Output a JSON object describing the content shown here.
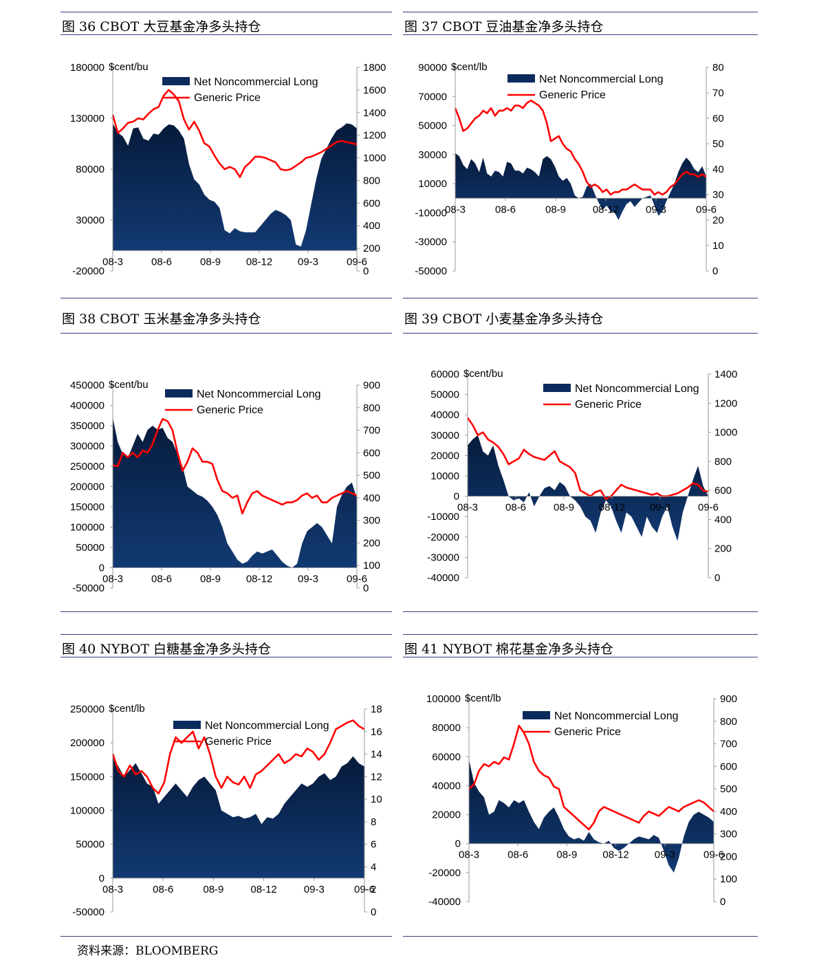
{
  "source_note": "资料来源：BLOOMBERG",
  "colors": {
    "area": "#0b2b5c",
    "area_top": "#061a3a",
    "price": "#ff0000",
    "rule": "#333b7a"
  },
  "chart_data": [
    {
      "id": "c36",
      "type": "area+line",
      "title": "图 36 CBOT 大豆基金净多头持仓",
      "unit_label": "$cent/bu",
      "legend": [
        "Net Noncommercial Long",
        "Generic Price"
      ],
      "x_ticks": [
        "08-3",
        "08-6",
        "08-9",
        "08-12",
        "09-3",
        "09-6"
      ],
      "left_axis": {
        "min": -20000,
        "max": 180000,
        "ticks": [
          -20000,
          30000,
          80000,
          130000,
          180000
        ]
      },
      "right_axis": {
        "min": 0,
        "max": 1800,
        "ticks": [
          0,
          200,
          400,
          600,
          800,
          1000,
          1200,
          1400,
          1600,
          1800
        ]
      },
      "net_long": [
        125000,
        116000,
        112000,
        103000,
        120000,
        121000,
        110000,
        108000,
        115000,
        114000,
        120000,
        124000,
        123000,
        118000,
        110000,
        85000,
        70000,
        65000,
        55000,
        50000,
        48000,
        42000,
        20000,
        17000,
        22000,
        19000,
        18000,
        18000,
        18000,
        24000,
        30000,
        36000,
        40000,
        38000,
        35000,
        30000,
        6000,
        4000,
        20000,
        45000,
        70000,
        90000,
        100000,
        110000,
        118000,
        121000,
        125000,
        124000,
        120000
      ],
      "price": [
        1380,
        1220,
        1260,
        1310,
        1320,
        1350,
        1340,
        1390,
        1430,
        1450,
        1550,
        1600,
        1560,
        1500,
        1340,
        1250,
        1320,
        1240,
        1130,
        1100,
        1020,
        950,
        900,
        920,
        900,
        830,
        920,
        960,
        1010,
        1010,
        1000,
        980,
        960,
        900,
        890,
        900,
        930,
        960,
        1000,
        1010,
        1030,
        1050,
        1080,
        1110,
        1140,
        1150,
        1140,
        1130,
        1120
      ]
    },
    {
      "id": "c37",
      "type": "area+line",
      "title": "图 37 CBOT 豆油基金净多头持仓",
      "unit_label": "$cent/lb",
      "legend": [
        "Net Noncommercial Long",
        "Generic Price"
      ],
      "x_ticks": [
        "08-3",
        "08-6",
        "08-9",
        "08-12",
        "09-3",
        "09-6"
      ],
      "left_axis": {
        "min": -50000,
        "max": 90000,
        "ticks": [
          -50000,
          -30000,
          -10000,
          10000,
          30000,
          50000,
          70000,
          90000
        ]
      },
      "right_axis": {
        "min": 0,
        "max": 80,
        "ticks": [
          0,
          10,
          20,
          30,
          40,
          50,
          60,
          70,
          80
        ]
      },
      "net_long": [
        31000,
        29000,
        23000,
        20000,
        27000,
        24000,
        18000,
        28000,
        17000,
        15000,
        19000,
        18000,
        15000,
        25000,
        24000,
        19000,
        19000,
        17000,
        21000,
        20000,
        18000,
        15000,
        27000,
        29000,
        27000,
        22000,
        15000,
        12000,
        14000,
        10000,
        2000,
        0,
        1000,
        8000,
        10000,
        3000,
        -3000,
        -8000,
        -5000,
        -9000,
        -10000,
        -15000,
        -9000,
        -4000,
        -2000,
        -6000,
        -3000,
        0,
        1000,
        2000,
        -5000,
        -12000,
        -9000,
        -2000,
        4000,
        10000,
        18000,
        24000,
        28000,
        25000,
        20000,
        18000,
        22000,
        15000
      ],
      "price": [
        64,
        60,
        55,
        56,
        58,
        60,
        61,
        63,
        62,
        64,
        61,
        63,
        63,
        64,
        63,
        65,
        65,
        64,
        66,
        67,
        66,
        65,
        63,
        58,
        51,
        52,
        53,
        50,
        48,
        47,
        44,
        42,
        39,
        35,
        33,
        34,
        33,
        31,
        32,
        30,
        31,
        31,
        32,
        32,
        33,
        34,
        33,
        32,
        32,
        32,
        30,
        31,
        30,
        31,
        33,
        34,
        36,
        38,
        39,
        38,
        38,
        37,
        38,
        37
      ]
    },
    {
      "id": "c38",
      "type": "area+line",
      "title": "图 38 CBOT 玉米基金净多头持仓",
      "unit_label": "$cent/bu",
      "legend": [
        "Net Noncommercial Long",
        "Generic Price"
      ],
      "x_ticks": [
        "08-3",
        "08-6",
        "08-9",
        "08-12",
        "09-3",
        "09-6"
      ],
      "left_axis": {
        "min": -50000,
        "max": 450000,
        "ticks": [
          -50000,
          0,
          50000,
          100000,
          150000,
          200000,
          250000,
          300000,
          350000,
          400000,
          450000
        ]
      },
      "right_axis": {
        "min": 0,
        "max": 900,
        "ticks": [
          0,
          100,
          200,
          300,
          400,
          500,
          600,
          700,
          800,
          900
        ]
      },
      "net_long": [
        370000,
        310000,
        280000,
        270000,
        300000,
        330000,
        310000,
        340000,
        350000,
        340000,
        345000,
        320000,
        310000,
        280000,
        250000,
        200000,
        190000,
        180000,
        175000,
        165000,
        150000,
        130000,
        100000,
        60000,
        40000,
        20000,
        10000,
        15000,
        30000,
        40000,
        35000,
        40000,
        45000,
        30000,
        15000,
        5000,
        0,
        10000,
        60000,
        90000,
        100000,
        110000,
        100000,
        80000,
        60000,
        150000,
        180000,
        200000,
        210000,
        170000
      ],
      "price": [
        545,
        540,
        600,
        580,
        600,
        580,
        610,
        600,
        640,
        700,
        750,
        740,
        700,
        600,
        520,
        560,
        620,
        600,
        560,
        560,
        550,
        480,
        430,
        420,
        400,
        410,
        330,
        380,
        420,
        430,
        410,
        400,
        390,
        380,
        370,
        380,
        380,
        390,
        410,
        420,
        400,
        410,
        380,
        380,
        400,
        410,
        420,
        430,
        420,
        410
      ]
    },
    {
      "id": "c39",
      "type": "area+line",
      "title": "图 39 CBOT 小麦基金净多头持仓",
      "unit_label": "$cent/bu",
      "legend": [
        "Net Noncommercial Long",
        "Generic Price"
      ],
      "x_ticks": [
        "08-3",
        "08-6",
        "08-9",
        "08-12",
        "09-3",
        "09-6"
      ],
      "left_axis": {
        "min": -40000,
        "max": 60000,
        "ticks": [
          -40000,
          -30000,
          -20000,
          -10000,
          0,
          10000,
          20000,
          30000,
          40000,
          50000,
          60000
        ]
      },
      "right_axis": {
        "min": 0,
        "max": 1400,
        "ticks": [
          0,
          200,
          400,
          600,
          800,
          1000,
          1200,
          1400
        ]
      },
      "net_long": [
        25000,
        28000,
        30000,
        22000,
        20000,
        25000,
        15000,
        8000,
        0,
        -2000,
        -1000,
        -3000,
        2000,
        -5000,
        0,
        4000,
        5000,
        3000,
        7000,
        5000,
        0,
        -2000,
        -5000,
        -10000,
        -12000,
        -18000,
        -8000,
        -2000,
        -5000,
        -12000,
        -18000,
        -8000,
        -10000,
        -15000,
        -20000,
        -10000,
        -15000,
        -18000,
        -10000,
        -5000,
        -15000,
        -22000,
        -8000,
        0,
        8000,
        15000,
        5000,
        0
      ],
      "price": [
        1100,
        1050,
        980,
        1000,
        950,
        930,
        900,
        850,
        780,
        800,
        820,
        880,
        850,
        830,
        820,
        810,
        840,
        870,
        800,
        780,
        760,
        720,
        600,
        580,
        560,
        590,
        600,
        540,
        560,
        600,
        640,
        620,
        610,
        600,
        590,
        580,
        570,
        580,
        560,
        560,
        570,
        580,
        600,
        620,
        650,
        640,
        600,
        590
      ]
    },
    {
      "id": "c40",
      "type": "area+line",
      "title": "图 40 NYBOT 白糖基金净多头持仓",
      "unit_label": "$cent/lb",
      "legend": [
        "Net Noncommercial Long",
        "Generic Price"
      ],
      "x_ticks": [
        "08-3",
        "08-6",
        "08-9",
        "08-12",
        "09-3",
        "09-6"
      ],
      "left_axis": {
        "min": -50000,
        "max": 250000,
        "ticks": [
          -50000,
          0,
          50000,
          100000,
          150000,
          200000,
          250000
        ]
      },
      "right_axis": {
        "min": 0,
        "max": 18,
        "ticks": [
          0,
          2,
          4,
          6,
          8,
          10,
          12,
          14,
          16,
          18
        ]
      },
      "net_long": [
        180000,
        165000,
        150000,
        160000,
        170000,
        155000,
        140000,
        135000,
        110000,
        120000,
        130000,
        140000,
        130000,
        120000,
        135000,
        145000,
        150000,
        140000,
        130000,
        100000,
        95000,
        90000,
        92000,
        88000,
        90000,
        95000,
        80000,
        90000,
        88000,
        95000,
        110000,
        120000,
        130000,
        140000,
        135000,
        140000,
        150000,
        155000,
        145000,
        150000,
        165000,
        170000,
        180000,
        170000,
        165000
      ],
      "price": [
        14,
        12.5,
        12,
        13,
        12.2,
        12.5,
        12,
        11,
        10.5,
        11.5,
        14,
        15.5,
        15,
        15.5,
        16,
        14.5,
        15.5,
        14,
        12,
        11,
        12,
        11.5,
        11.3,
        12,
        11,
        12.2,
        12.5,
        13,
        13.5,
        14,
        13.2,
        13.5,
        14,
        13.8,
        14.5,
        14.2,
        13.5,
        14,
        15,
        16.2,
        16.5,
        16.8,
        17,
        16.5,
        16.2
      ]
    },
    {
      "id": "c41",
      "type": "area+line",
      "title": "图 41 NYBOT 棉花基金净多头持仓",
      "unit_label": "$cent/lb",
      "legend": [
        "Net Noncommercial Long",
        "Generic Price"
      ],
      "x_ticks": [
        "08-3",
        "08-6",
        "08-9",
        "08-12",
        "09-3",
        "09-6"
      ],
      "left_axis": {
        "min": -40000,
        "max": 100000,
        "ticks": [
          -40000,
          -20000,
          0,
          20000,
          40000,
          60000,
          80000,
          100000
        ]
      },
      "right_axis": {
        "min": 0,
        "max": 900,
        "ticks": [
          0,
          100,
          200,
          300,
          400,
          500,
          600,
          700,
          800,
          900
        ]
      },
      "net_long": [
        58000,
        42000,
        36000,
        32000,
        20000,
        22000,
        30000,
        28000,
        25000,
        30000,
        28000,
        30000,
        22000,
        15000,
        10000,
        18000,
        22000,
        25000,
        18000,
        10000,
        5000,
        3000,
        4000,
        2000,
        8000,
        3000,
        1000,
        0,
        2000,
        -3000,
        -5000,
        -3000,
        0,
        3000,
        5000,
        4000,
        3000,
        6000,
        4000,
        -5000,
        -15000,
        -20000,
        -10000,
        5000,
        15000,
        20000,
        22000,
        20000,
        18000,
        15000
      ],
      "price": [
        500,
        520,
        580,
        610,
        600,
        620,
        610,
        640,
        630,
        700,
        780,
        750,
        700,
        620,
        580,
        560,
        550,
        510,
        500,
        420,
        400,
        380,
        360,
        340,
        320,
        350,
        400,
        420,
        410,
        400,
        390,
        380,
        370,
        360,
        350,
        380,
        400,
        390,
        380,
        400,
        420,
        410,
        400,
        420,
        430,
        440,
        450,
        440,
        420,
        400
      ]
    }
  ]
}
